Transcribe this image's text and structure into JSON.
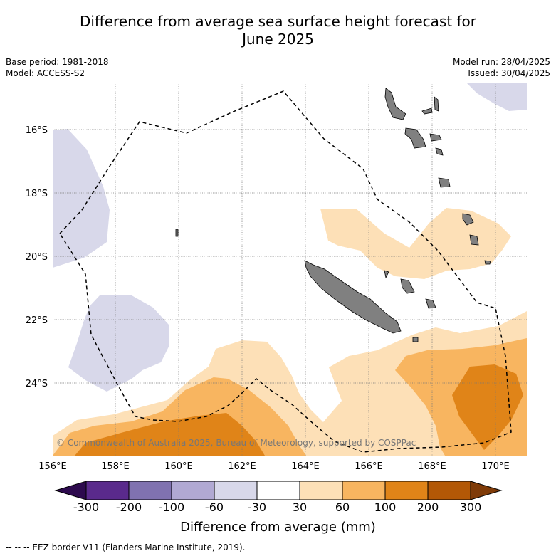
{
  "title_line1": "Difference from average sea surface height forecast for",
  "title_line2": "June 2025",
  "meta_left": {
    "base_period": "Base period: 1981-2018",
    "model": "Model: ACCESS-S2"
  },
  "meta_right": {
    "model_run": "Model run: 28/04/2025",
    "issued": "Issued: 30/04/2025"
  },
  "map": {
    "lon_labels": [
      "156°E",
      "158°E",
      "160°E",
      "162°E",
      "164°E",
      "166°E",
      "168°E",
      "170°E"
    ],
    "lat_labels": [
      "16°S",
      "18°S",
      "20°S",
      "22°S",
      "24°S"
    ],
    "copyright": "© Commonwealth of Australia 2025, Bureau of Meteorology, supported by COSPPac",
    "colors": {
      "land": "#808080",
      "neg30_60": "#d8d8ea",
      "pos30_60": "#fde0b7",
      "pos60_100": "#f8b560",
      "pos100_200": "#e08418"
    }
  },
  "colorbar": {
    "labels": [
      "-300",
      "-200",
      "-100",
      "-60",
      "-30",
      "30",
      "60",
      "100",
      "200",
      "300"
    ],
    "colors": [
      "#2d0a4e",
      "#5a2a8c",
      "#8072b0",
      "#b1a9d3",
      "#d8d8ea",
      "#ffffff",
      "#fde0b7",
      "#f8b560",
      "#e08418",
      "#b35806",
      "#7f3b08"
    ],
    "title": "Difference from average (mm)"
  },
  "footer": "--  --  -- EEZ border V11 (Flanders Marine Institute, 2019)."
}
